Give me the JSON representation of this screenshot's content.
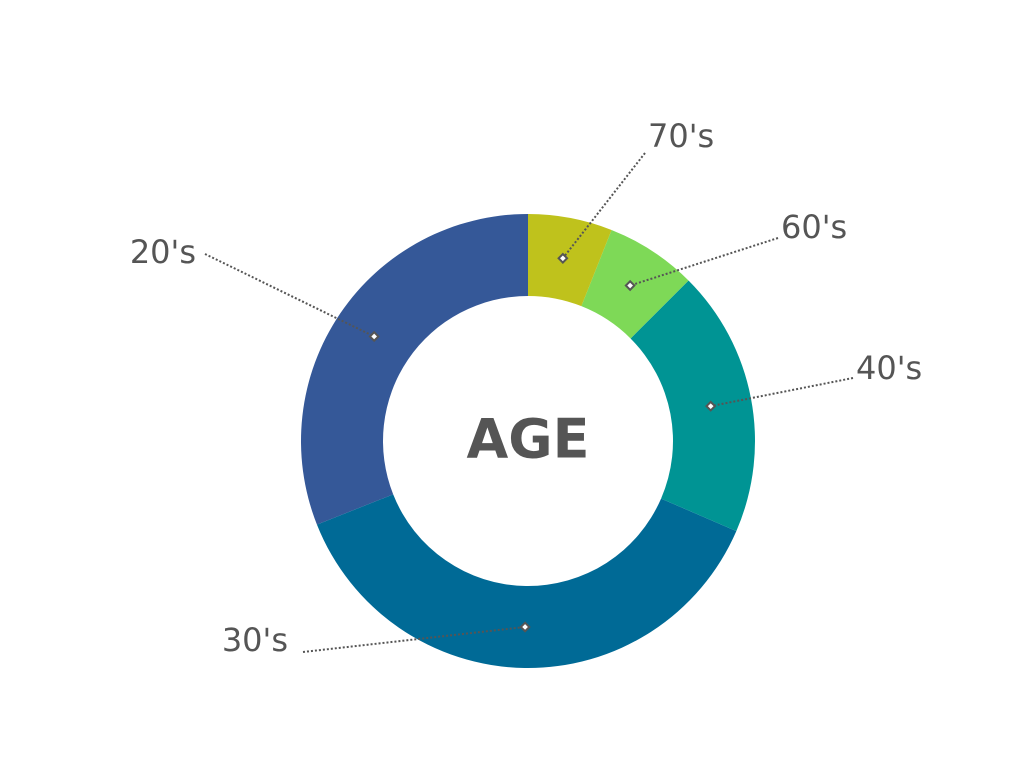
{
  "chart_data": {
    "type": "donut",
    "title": "AGE",
    "categories": [
      "70's",
      "60's",
      "40's",
      "30's",
      "20's"
    ],
    "values": [
      6,
      6.5,
      19,
      37.5,
      31
    ],
    "colors": [
      "#bfc21c",
      "#7ed957",
      "#009494",
      "#006a96",
      "#355898"
    ]
  }
}
